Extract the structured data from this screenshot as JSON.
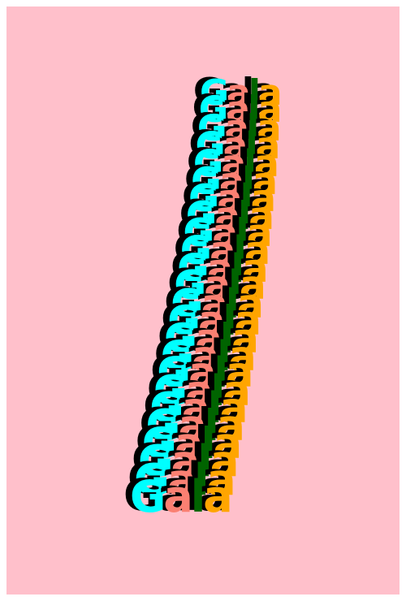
{
  "poster": {
    "background": "#ffc0cb",
    "word": "Gala",
    "repeat_count": 24,
    "shadow_color": "#000000",
    "letter_colors": [
      "#00ffff",
      "#fa8072",
      "#006400",
      "#ffa500"
    ]
  }
}
